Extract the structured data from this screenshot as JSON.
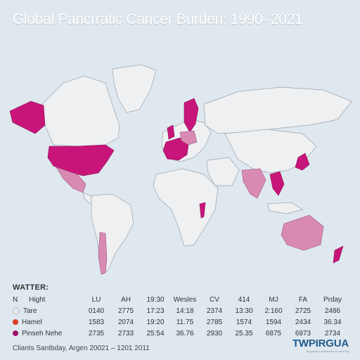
{
  "title": "Global Pancrratic Cancer Burden: 1990–2021",
  "legend": {
    "heading": "WATTER:",
    "header_row": [
      "N",
      "Hight",
      "LU",
      "AH",
      "19:30",
      "Wesles",
      "CV",
      "414",
      "MJ",
      "FA",
      "Prday"
    ],
    "rows": [
      {
        "name": "Tare",
        "color": "#e8e8ea",
        "values": [
          "0140",
          "2775",
          "17:23",
          "14:18",
          "2374",
          "13:30",
          "2:160",
          "2725",
          "2486"
        ]
      },
      {
        "name": "Hamel",
        "color": "#d8401e",
        "values": [
          "1583",
          "2074",
          "19:20",
          "11.75",
          "2785",
          "1574",
          "1594",
          "2434",
          "36.34"
        ]
      },
      {
        "name": "Pinseh Nehe",
        "color": "#a0106a",
        "values": [
          "2735",
          "2733",
          "25:54",
          "36.76",
          "2930",
          "25.35",
          "6875",
          "6973",
          "2734"
        ]
      }
    ]
  },
  "footer": "Cliants Santbday, Argen 20021 – 1201 2011",
  "brand": {
    "name": "TWPIRGUA",
    "tagline": "Dirgaalaing Naserdant Erurenning"
  },
  "colors": {
    "high": "#c8157a",
    "medium": "#d88ab3",
    "land": "#eef0f2",
    "ocean": "#dfe8ee"
  }
}
